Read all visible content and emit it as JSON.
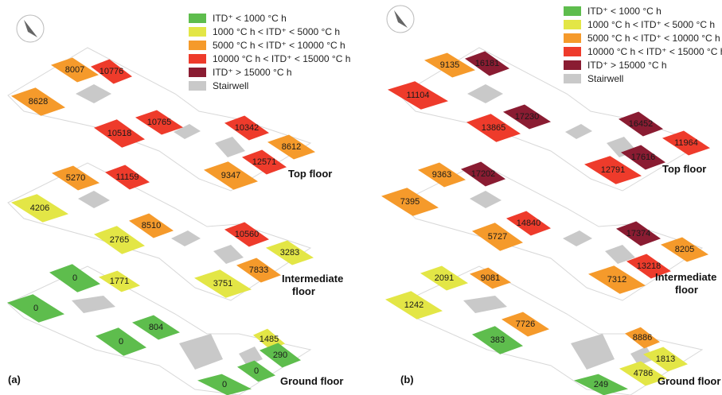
{
  "colors": {
    "green": "#5ebd4d",
    "yellow": "#e3e646",
    "orange": "#f59a2b",
    "red": "#ee3b2b",
    "maroon": "#8a1c32",
    "gray": "#c9c9c9",
    "outline": "#d8d8d8"
  },
  "legend": [
    {
      "color": "green",
      "text": "ITD⁺ < 1000 °C h"
    },
    {
      "color": "yellow",
      "text": "1000 °C h < ITD⁺ < 5000 °C h"
    },
    {
      "color": "orange",
      "text": "5000 °C h < ITD⁺ < 10000 °C h"
    },
    {
      "color": "red",
      "text": "10000 °C h < ITD⁺ < 15000 °C h"
    },
    {
      "color": "maroon",
      "text": "ITD⁺ > 15000 °C h"
    },
    {
      "color": "gray",
      "text": "Stairwell"
    }
  ],
  "floor_labels": {
    "top": "Top floor",
    "intermediate_1": "Intermediate",
    "intermediate_2": "floor",
    "ground": "Ground floor"
  },
  "panels": [
    {
      "label": "(a)",
      "rooms": [
        {
          "value": "8007",
          "color": "orange"
        },
        {
          "value": "10776",
          "color": "red"
        },
        {
          "value": "8628",
          "color": "orange"
        },
        {
          "value": "10765",
          "color": "red"
        },
        {
          "value": "10518",
          "color": "red"
        },
        {
          "value": "10342",
          "color": "red"
        },
        {
          "value": "8612",
          "color": "orange"
        },
        {
          "value": "12571",
          "color": "red"
        },
        {
          "value": "9347",
          "color": "orange"
        },
        {
          "value": "5270",
          "color": "orange"
        },
        {
          "value": "11159",
          "color": "red"
        },
        {
          "value": "4206",
          "color": "yellow"
        },
        {
          "value": "8510",
          "color": "orange"
        },
        {
          "value": "2765",
          "color": "yellow"
        },
        {
          "value": "10560",
          "color": "red"
        },
        {
          "value": "3283",
          "color": "yellow"
        },
        {
          "value": "7833",
          "color": "orange"
        },
        {
          "value": "3751",
          "color": "yellow"
        },
        {
          "value": "0",
          "color": "green"
        },
        {
          "value": "1771",
          "color": "yellow"
        },
        {
          "value": "0",
          "color": "green"
        },
        {
          "value": "804",
          "color": "green"
        },
        {
          "value": "0",
          "color": "green"
        },
        {
          "value": "1485",
          "color": "yellow"
        },
        {
          "value": "0",
          "color": "green"
        },
        {
          "value": "290",
          "color": "green"
        },
        {
          "value": "0",
          "color": "green"
        }
      ]
    },
    {
      "label": "(b)",
      "rooms": [
        {
          "value": "9135",
          "color": "orange"
        },
        {
          "value": "16181",
          "color": "maroon"
        },
        {
          "value": "11104",
          "color": "red"
        },
        {
          "value": "17230",
          "color": "maroon"
        },
        {
          "value": "13865",
          "color": "red"
        },
        {
          "value": "16452",
          "color": "maroon"
        },
        {
          "value": "11964",
          "color": "red"
        },
        {
          "value": "17616",
          "color": "maroon"
        },
        {
          "value": "12791",
          "color": "red"
        },
        {
          "value": "9363",
          "color": "orange"
        },
        {
          "value": "17202",
          "color": "maroon"
        },
        {
          "value": "7395",
          "color": "orange"
        },
        {
          "value": "14840",
          "color": "red"
        },
        {
          "value": "5727",
          "color": "orange"
        },
        {
          "value": "17374",
          "color": "maroon"
        },
        {
          "value": "8205",
          "color": "orange"
        },
        {
          "value": "13218",
          "color": "red"
        },
        {
          "value": "7312",
          "color": "orange"
        },
        {
          "value": "2091",
          "color": "yellow"
        },
        {
          "value": "9081",
          "color": "orange"
        },
        {
          "value": "1242",
          "color": "yellow"
        },
        {
          "value": "7726",
          "color": "orange"
        },
        {
          "value": "383",
          "color": "green"
        },
        {
          "value": "8886",
          "color": "orange"
        },
        {
          "value": "1813",
          "color": "yellow"
        },
        {
          "value": "4786",
          "color": "yellow"
        },
        {
          "value": "249",
          "color": "green"
        }
      ]
    }
  ]
}
